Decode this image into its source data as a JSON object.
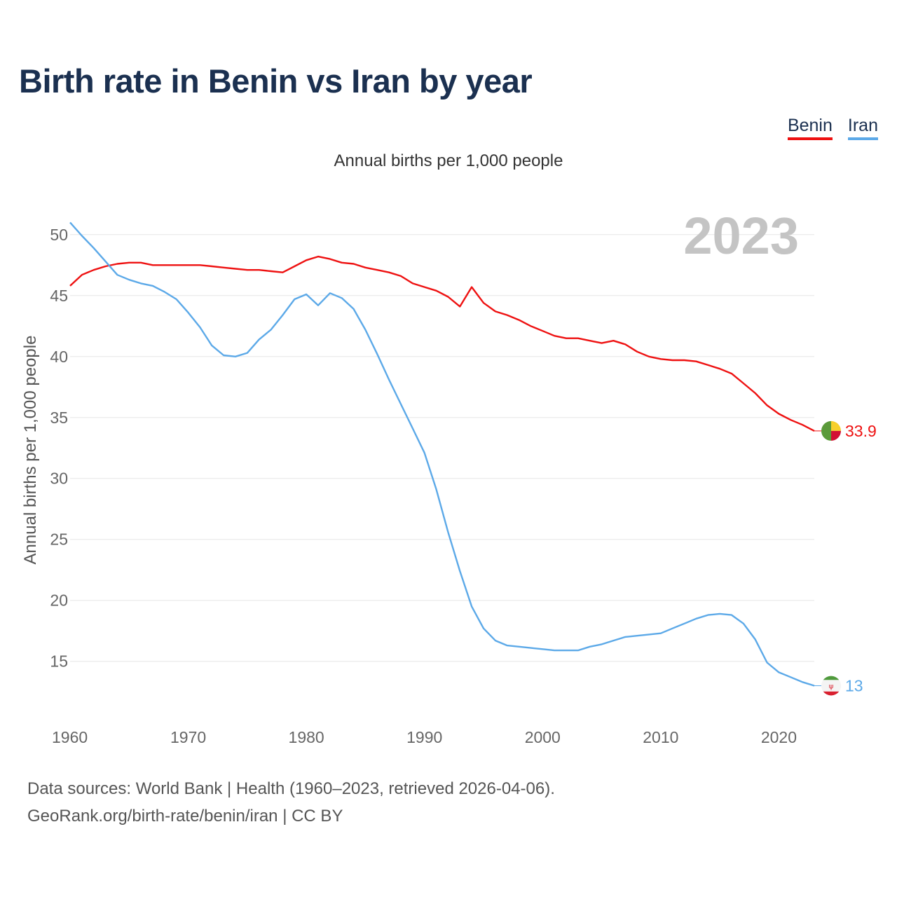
{
  "title": "Birth rate in Benin vs Iran by year",
  "subtitle": "Annual births per 1,000 people",
  "legend": [
    {
      "label": "Benin",
      "color": "#ee1111"
    },
    {
      "label": "Iran",
      "color": "#5ca9e8"
    }
  ],
  "footer": {
    "line1": "Data sources: World Bank | Health (1960–2023, retrieved 2026-04-06).",
    "line2": "GeoRank.org/birth-rate/benin/iran | CC BY"
  },
  "chart_data": {
    "type": "line",
    "title": "Birth rate in Benin vs Iran by year",
    "ylabel": "Annual births per 1,000 people",
    "xlabel": "",
    "year_label": "2023",
    "xlim": [
      1960,
      2023
    ],
    "ylim": [
      10.5,
      52
    ],
    "x_ticks": [
      1960,
      1970,
      1980,
      1990,
      2000,
      2010,
      2020
    ],
    "y_ticks": [
      15,
      20,
      25,
      30,
      35,
      40,
      45,
      50
    ],
    "grid": true,
    "x": [
      1960,
      1961,
      1962,
      1963,
      1964,
      1965,
      1966,
      1967,
      1968,
      1969,
      1970,
      1971,
      1972,
      1973,
      1974,
      1975,
      1976,
      1977,
      1978,
      1979,
      1980,
      1981,
      1982,
      1983,
      1984,
      1985,
      1986,
      1987,
      1988,
      1989,
      1990,
      1991,
      1992,
      1993,
      1994,
      1995,
      1996,
      1997,
      1998,
      1999,
      2000,
      2001,
      2002,
      2003,
      2004,
      2005,
      2006,
      2007,
      2008,
      2009,
      2010,
      2011,
      2012,
      2013,
      2014,
      2015,
      2016,
      2017,
      2018,
      2019,
      2020,
      2021,
      2022,
      2023
    ],
    "series": [
      {
        "name": "Benin",
        "color": "#ee1111",
        "end_label": "33.9",
        "values": [
          45.8,
          46.7,
          47.1,
          47.4,
          47.6,
          47.7,
          47.7,
          47.5,
          47.5,
          47.5,
          47.5,
          47.5,
          47.4,
          47.3,
          47.2,
          47.1,
          47.1,
          47.0,
          46.9,
          47.4,
          47.9,
          48.2,
          48.0,
          47.7,
          47.6,
          47.3,
          47.1,
          46.9,
          46.6,
          46.0,
          45.7,
          45.4,
          44.9,
          44.1,
          45.7,
          44.4,
          43.7,
          43.4,
          43.0,
          42.5,
          42.1,
          41.7,
          41.5,
          41.5,
          41.3,
          41.1,
          41.3,
          41.0,
          40.4,
          40.0,
          39.8,
          39.7,
          39.7,
          39.6,
          39.3,
          39.0,
          38.6,
          37.8,
          37.0,
          36.0,
          35.3,
          34.8,
          34.4,
          33.9
        ]
      },
      {
        "name": "Iran",
        "color": "#5ca9e8",
        "end_label": "13",
        "values": [
          51.0,
          49.9,
          48.9,
          47.8,
          46.7,
          46.3,
          46.0,
          45.8,
          45.3,
          44.7,
          43.6,
          42.4,
          40.9,
          40.1,
          40.0,
          40.3,
          41.4,
          42.2,
          43.4,
          44.7,
          45.1,
          44.2,
          45.2,
          44.8,
          43.9,
          42.2,
          40.2,
          38.1,
          36.1,
          34.1,
          32.1,
          29.1,
          25.6,
          22.4,
          19.5,
          17.7,
          16.7,
          16.3,
          16.2,
          16.1,
          16.0,
          15.9,
          15.9,
          15.9,
          16.2,
          16.4,
          16.7,
          17.0,
          17.1,
          17.2,
          17.3,
          17.7,
          18.1,
          18.5,
          18.8,
          18.9,
          18.8,
          18.1,
          16.8,
          14.9,
          14.1,
          13.7,
          13.3,
          13.0
        ]
      }
    ]
  }
}
